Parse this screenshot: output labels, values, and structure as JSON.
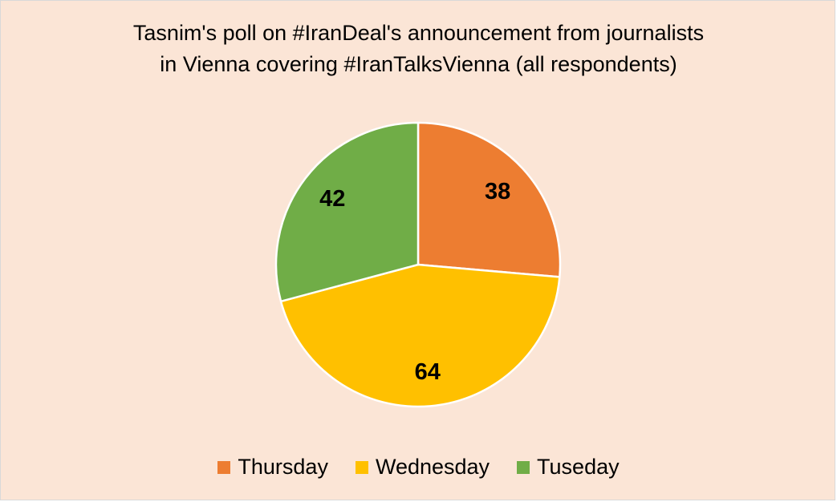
{
  "chart_data": {
    "type": "pie",
    "title_lines": [
      "Tasnim's poll on #IranDeal's announcement from journalists",
      "in Vienna covering #IranTalksVienna (all respondents)"
    ],
    "categories": [
      "Thursday",
      "Wednesday",
      "Tuseday"
    ],
    "values": [
      38,
      64,
      42
    ],
    "colors": [
      "#ed7d31",
      "#ffc000",
      "#70ad47"
    ],
    "background": "#fbe5d6",
    "legend_position": "bottom",
    "start_angle_deg": 0,
    "direction": "clockwise"
  }
}
